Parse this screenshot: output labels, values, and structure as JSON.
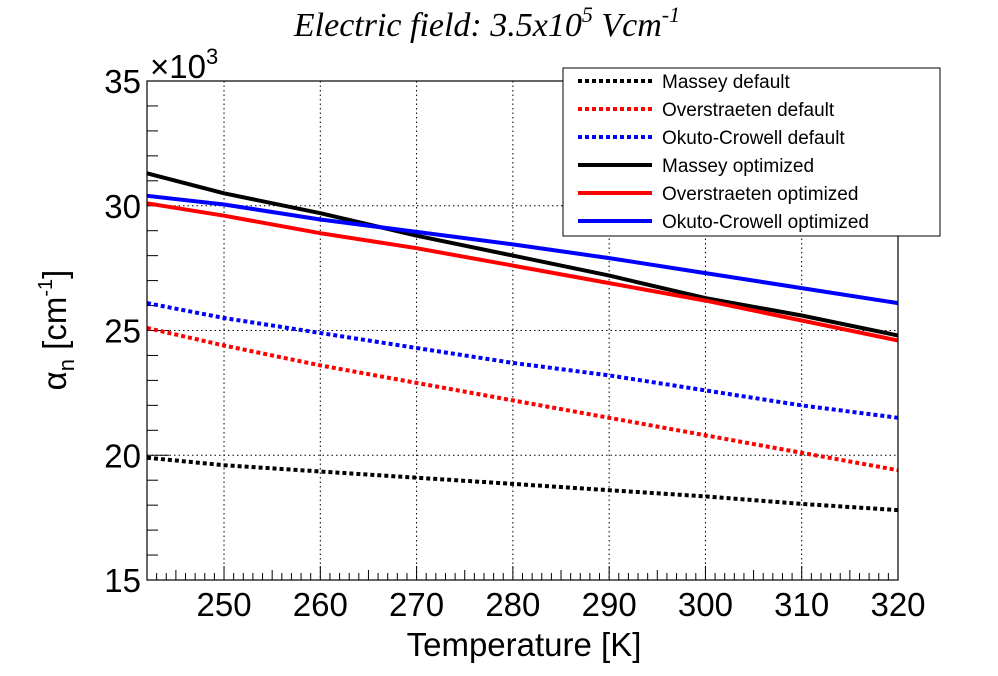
{
  "chart_data": {
    "type": "line",
    "title": {
      "prefix": "Electric field: 3.5x10",
      "exponent": "5",
      "unit": " Vcm",
      "unit_exponent": "-1"
    },
    "xlabel": "Temperature [K]",
    "ylabel": {
      "symbol": "α",
      "subscript": "n",
      "unit": " [cm",
      "unit_exponent": "-1",
      "close": "]"
    },
    "y_multiplier": {
      "base": "×10",
      "exponent": "3"
    },
    "xlim": [
      242,
      320
    ],
    "ylim": [
      15,
      35
    ],
    "x_ticks": [
      250,
      260,
      270,
      280,
      290,
      300,
      310,
      320
    ],
    "y_ticks": [
      15,
      20,
      25,
      30,
      35
    ],
    "grid": true,
    "legend_position": "top-right",
    "x": [
      242,
      250,
      260,
      270,
      280,
      290,
      300,
      310,
      320
    ],
    "series": [
      {
        "name": "Massey default",
        "color": "#000000",
        "style": "dotted",
        "values": [
          19.9,
          19.6,
          19.35,
          19.1,
          18.85,
          18.6,
          18.35,
          18.05,
          17.8
        ]
      },
      {
        "name": "Overstraeten default",
        "color": "#ff0000",
        "style": "dotted",
        "values": [
          25.1,
          24.4,
          23.6,
          22.9,
          22.2,
          21.5,
          20.8,
          20.1,
          19.4
        ]
      },
      {
        "name": "Okuto-Crowell default",
        "color": "#0000ff",
        "style": "dotted",
        "values": [
          26.1,
          25.5,
          24.9,
          24.3,
          23.7,
          23.2,
          22.6,
          22.0,
          21.5
        ]
      },
      {
        "name": "Massey optimized",
        "color": "#000000",
        "style": "solid",
        "values": [
          31.3,
          30.5,
          29.7,
          28.8,
          28.0,
          27.2,
          26.3,
          25.6,
          24.8
        ]
      },
      {
        "name": "Overstraeten optimized",
        "color": "#ff0000",
        "style": "solid",
        "values": [
          30.1,
          29.6,
          28.9,
          28.3,
          27.6,
          26.9,
          26.2,
          25.4,
          24.6
        ]
      },
      {
        "name": "Okuto-Crowell optimized",
        "color": "#0000ff",
        "style": "solid",
        "values": [
          30.4,
          30.05,
          29.45,
          28.95,
          28.45,
          27.9,
          27.3,
          26.7,
          26.1
        ]
      }
    ]
  }
}
